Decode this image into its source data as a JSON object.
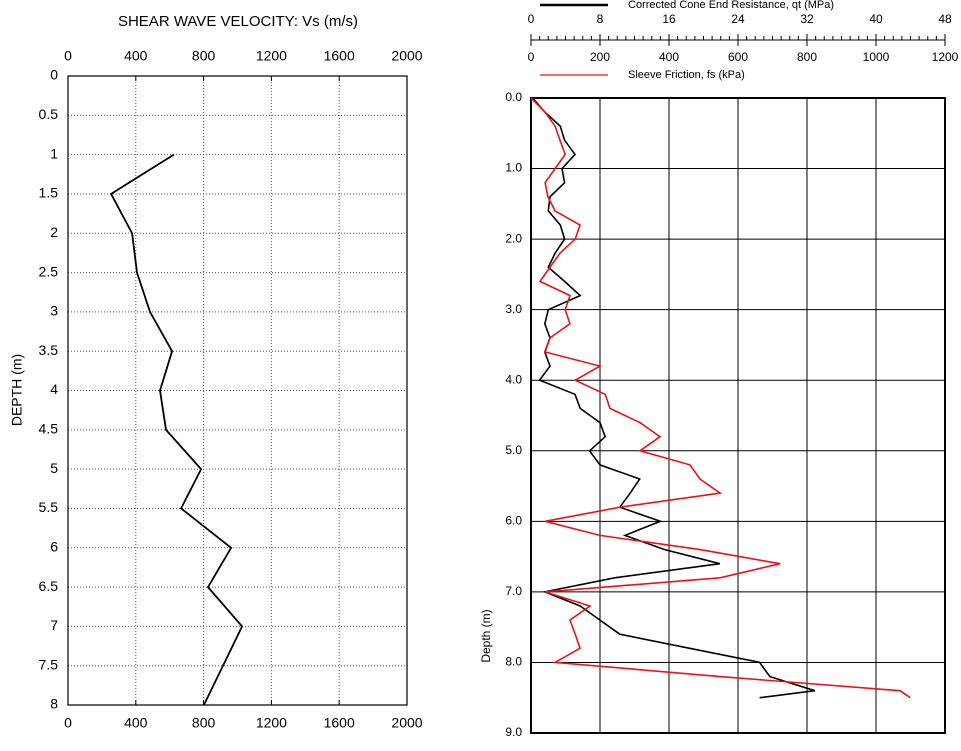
{
  "chart_data": [
    {
      "type": "line",
      "title": "SHEAR WAVE VELOCITY: Vs (m/s)",
      "y_label": "DEPTH (m)",
      "depth": [
        1,
        1.5,
        2,
        2.5,
        3,
        3.5,
        4,
        4.5,
        5,
        5.5,
        6,
        6.5,
        7,
        8
      ],
      "series": [
        {
          "color": "#000000",
          "values": [
            625,
            254,
            378,
            407,
            484,
            614,
            543,
            578,
            785,
            667,
            962,
            826,
            1027,
            802
          ]
        }
      ],
      "xlim": [
        0,
        2000
      ],
      "xticks": [
        0,
        400,
        800,
        1200,
        1600,
        2000
      ],
      "ylim": [
        0,
        8
      ],
      "yticks": [
        0,
        0.5,
        1,
        1.5,
        2,
        2.5,
        3,
        3.5,
        4,
        4.5,
        5,
        5.5,
        6,
        6.5,
        7,
        7.5,
        8
      ],
      "grid": "dotted"
    },
    {
      "type": "line",
      "y_label": "Depth (m)",
      "depth": [
        0,
        0.2,
        0.4,
        0.6,
        0.8,
        1,
        1.2,
        1.4,
        1.6,
        1.8,
        2,
        2.2,
        2.4,
        2.6,
        2.8,
        3,
        3.2,
        3.4,
        3.6,
        3.8,
        4,
        4.2,
        4.4,
        4.6,
        4.8,
        5,
        5.2,
        5.4,
        5.6,
        5.8,
        6,
        6.2,
        6.4,
        6.6,
        6.8,
        7,
        7.2,
        7.4,
        7.6,
        7.8,
        8,
        8.2,
        8.4,
        8.5
      ],
      "series": [
        {
          "name": "Corrected Cone End Resistance, qt (MPa)",
          "color": "#000000",
          "axis": "x",
          "values": [
            0.2,
            1.6,
            3.4,
            3.9,
            5.1,
            3.6,
            3.9,
            2.2,
            2.0,
            3.4,
            3.9,
            2.8,
            2.0,
            3.9,
            5.7,
            2.0,
            1.6,
            2.2,
            1.6,
            2.2,
            1.0,
            5.1,
            5.7,
            8.0,
            8.6,
            6.8,
            8.0,
            12.6,
            11.5,
            10.3,
            15.0,
            10.9,
            15.5,
            21.9,
            9.7,
            1.6,
            5.7,
            8.0,
            10.3,
            18.4,
            26.5,
            27.7,
            32.9,
            26.5
          ]
        },
        {
          "name": "Sleeve Friction, fs (kPa)",
          "color": "#e8141a",
          "axis": "x2",
          "values": [
            0,
            41,
            70,
            84,
            99,
            70,
            41,
            49,
            70,
            142,
            128,
            84,
            55,
            26,
            113,
            99,
            113,
            55,
            41,
            200,
            128,
            215,
            229,
            316,
            374,
            316,
            461,
            490,
            548,
            258,
            41,
            200,
            490,
            722,
            548,
            41,
            171,
            113,
            128,
            142,
            70,
            548,
            1070,
            1099
          ]
        }
      ],
      "xlim": [
        0,
        48
      ],
      "xticks": [
        0,
        8,
        16,
        24,
        32,
        40,
        48
      ],
      "x2lim": [
        0,
        1200
      ],
      "x2ticks": [
        0,
        200,
        400,
        600,
        800,
        1000,
        1200
      ],
      "ylim": [
        0,
        9
      ],
      "yticks": [
        {
          "value": 0,
          "label": "0.0"
        },
        {
          "value": 1,
          "label": "1.0"
        },
        {
          "value": 2,
          "label": "2.0"
        },
        {
          "value": 3,
          "label": "3.0"
        },
        {
          "value": 4,
          "label": "4.0"
        },
        {
          "value": 5,
          "label": "5.0"
        },
        {
          "value": 6,
          "label": "6.0"
        },
        {
          "value": 7,
          "label": "7.0"
        },
        {
          "value": 8,
          "label": "8.0"
        },
        {
          "value": 9,
          "label": "9.0"
        }
      ],
      "grid": "solid"
    }
  ]
}
